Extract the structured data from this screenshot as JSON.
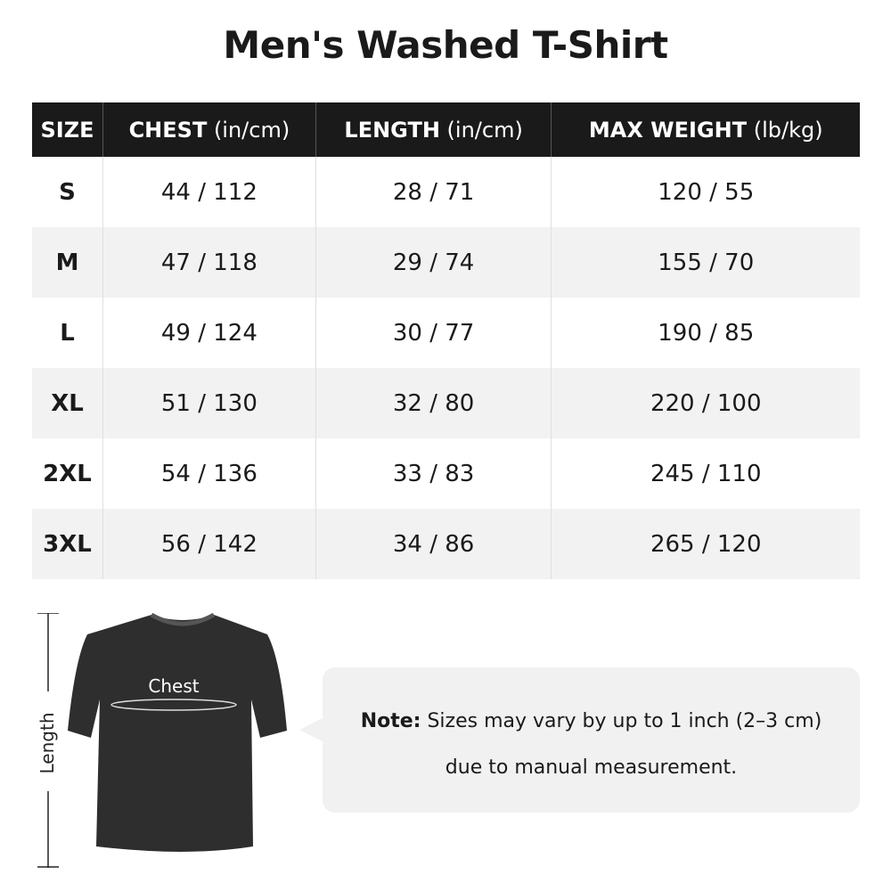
{
  "title": "Men's Washed T-Shirt",
  "table": {
    "headers": [
      {
        "label": "SIZE",
        "unit": ""
      },
      {
        "label": "CHEST",
        "unit": " (in/cm)"
      },
      {
        "label": "LENGTH",
        "unit": " (in/cm)"
      },
      {
        "label": "MAX WEIGHT",
        "unit": " (lb/kg)"
      }
    ],
    "rows": [
      [
        "S",
        "44 / 112",
        "28 / 71",
        "120 / 55"
      ],
      [
        "M",
        "47 / 118",
        "29 / 74",
        "155 / 70"
      ],
      [
        "L",
        "49 / 124",
        "30 / 77",
        "190 / 85"
      ],
      [
        "XL",
        "51 / 130",
        "32 / 80",
        "220 / 100"
      ],
      [
        "2XL",
        "54 / 136",
        "33 / 83",
        "245 / 110"
      ],
      [
        "3XL",
        "56 / 142",
        "34 / 86",
        "265 / 120"
      ]
    ]
  },
  "diagram": {
    "chest_label": "Chest",
    "length_label": "Length",
    "shirt_color": "#2e2e2e"
  },
  "note": {
    "prefix": "Note:",
    "line1": " Sizes may vary by up to 1 inch (2–3 cm)",
    "line2": "due to manual measurement."
  }
}
